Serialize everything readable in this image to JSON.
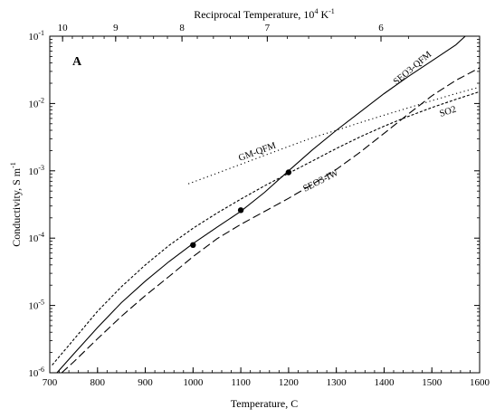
{
  "chart_data": {
    "type": "line",
    "panel_label": "A",
    "xlabel": "Temperature, C",
    "x_top_label_main": "Reciprocal Temperature, 10",
    "x_top_label_exp": "4",
    "x_top_label_unit": " K",
    "x_top_label_unit_exp": "-1",
    "ylabel_main": "Conductivity, S m",
    "ylabel_exp": "-1",
    "xlim": [
      700,
      1600
    ],
    "ylim": [
      1e-06,
      0.1
    ],
    "y_scale": "log",
    "x_ticks": [
      700,
      800,
      900,
      1000,
      1100,
      1200,
      1300,
      1400,
      1500,
      1600
    ],
    "x_tick_labels": [
      "700",
      "800",
      "900",
      "1000",
      "1100",
      "1200",
      "1300",
      "1400",
      "1500",
      "1600"
    ],
    "top_ticks": [
      10,
      9,
      8,
      7,
      6
    ],
    "top_tick_labels": [
      "10",
      "9",
      "8",
      "7",
      "6"
    ],
    "y_ticks": [
      {
        "base": "10",
        "exp": "-6",
        "value": 1e-06
      },
      {
        "base": "10",
        "exp": "-5",
        "value": 1e-05
      },
      {
        "base": "10",
        "exp": "-4",
        "value": 0.0001
      },
      {
        "base": "10",
        "exp": "-3",
        "value": 0.001
      },
      {
        "base": "10",
        "exp": "-2",
        "value": 0.01
      },
      {
        "base": "10",
        "exp": "-1",
        "value": 0.1
      }
    ],
    "grid": false,
    "series": [
      {
        "name": "SEO3-QFM",
        "style": "solid",
        "x": [
          715,
          750,
          800,
          850,
          900,
          950,
          1000,
          1050,
          1100,
          1150,
          1200,
          1250,
          1300,
          1350,
          1400,
          1450,
          1500,
          1550,
          1570
        ],
        "y": [
          1e-06,
          1.9e-06,
          4.7e-06,
          1.1e-05,
          2.3e-05,
          4.5e-05,
          8.3e-05,
          0.000145,
          0.00025,
          0.00048,
          0.001,
          0.00205,
          0.004,
          0.0075,
          0.014,
          0.025,
          0.043,
          0.074,
          0.1
        ]
      },
      {
        "name": "SEO3-IW",
        "style": "dashed",
        "x": [
          725,
          750,
          800,
          850,
          900,
          950,
          1000,
          1050,
          1100,
          1150,
          1200,
          1250,
          1300,
          1350,
          1400,
          1450,
          1500,
          1550,
          1600
        ],
        "y": [
          1e-06,
          1.45e-06,
          3.2e-06,
          6.9e-06,
          1.4e-05,
          2.7e-05,
          5.3e-05,
          9.8e-05,
          0.00016,
          0.00025,
          0.00039,
          0.00063,
          0.00105,
          0.0019,
          0.0036,
          0.0069,
          0.013,
          0.022,
          0.034
        ]
      },
      {
        "name": "SO2",
        "style": "short-dashed",
        "x": [
          705,
          750,
          800,
          850,
          900,
          950,
          1000,
          1050,
          1100,
          1150,
          1200,
          1250,
          1300,
          1350,
          1400,
          1450,
          1500,
          1550,
          1600
        ],
        "y": [
          1.3e-06,
          3.1e-06,
          8.2e-06,
          1.9e-05,
          4e-05,
          7.8e-05,
          0.00014,
          0.000235,
          0.00038,
          0.0006,
          0.00092,
          0.0014,
          0.00215,
          0.0032,
          0.0046,
          0.0064,
          0.0087,
          0.0115,
          0.015
        ]
      },
      {
        "name": "GM-QFM",
        "style": "dotted",
        "x": [
          990,
          1050,
          1100,
          1150,
          1200,
          1250,
          1300,
          1350,
          1400,
          1450,
          1500,
          1550,
          1600
        ],
        "y": [
          0.00064,
          0.00092,
          0.00125,
          0.0017,
          0.0023,
          0.0031,
          0.004,
          0.0052,
          0.0067,
          0.0086,
          0.011,
          0.014,
          0.0175
        ]
      }
    ],
    "points": [
      {
        "x": 1000,
        "y": 7.9e-05
      },
      {
        "x": 1100,
        "y": 0.00026
      },
      {
        "x": 1200,
        "y": 0.00095
      }
    ]
  }
}
